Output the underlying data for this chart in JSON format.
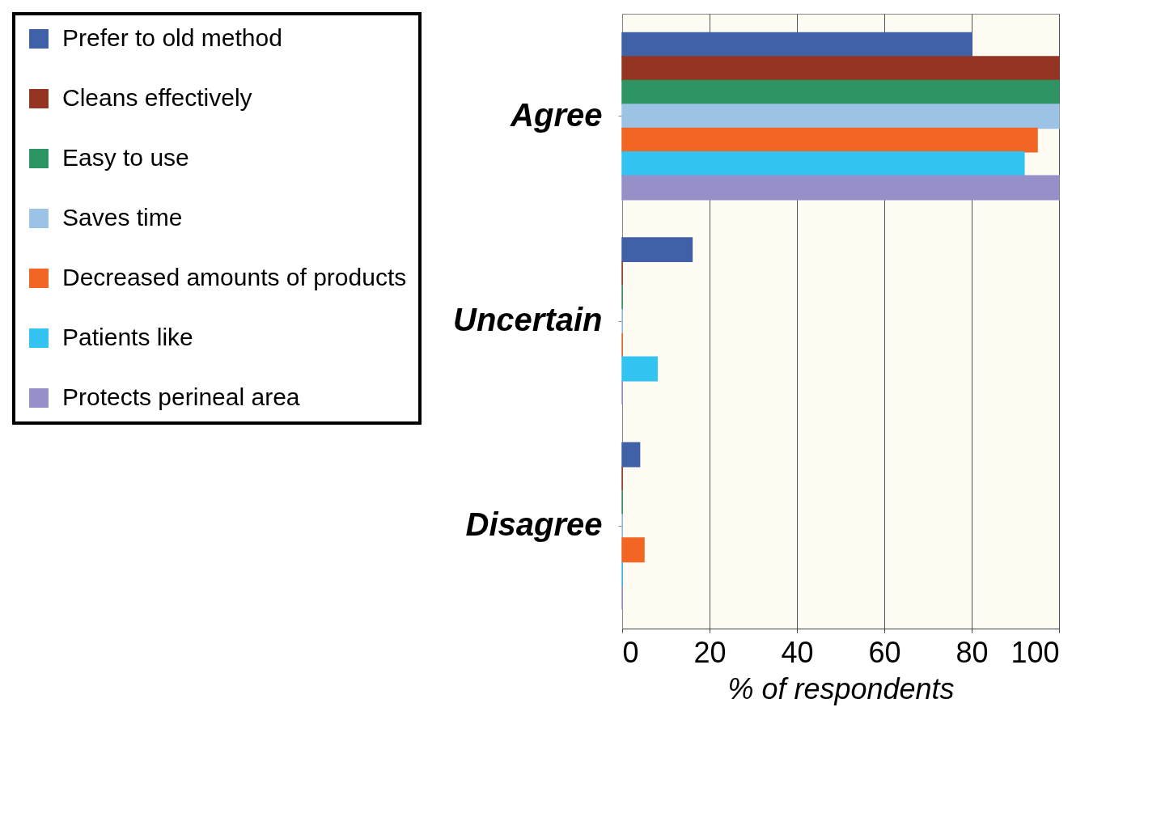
{
  "chart_data": {
    "type": "bar",
    "orientation": "horizontal",
    "categories": [
      "Agree",
      "Uncertain",
      "Disagree"
    ],
    "series": [
      {
        "name": "Prefer to old method",
        "color": "#4060a8",
        "values": [
          80,
          16,
          4
        ]
      },
      {
        "name": "Cleans effectively",
        "color": "#943422",
        "values": [
          100,
          0,
          0
        ]
      },
      {
        "name": "Easy to use",
        "color": "#2e9464",
        "values": [
          100,
          0,
          0
        ]
      },
      {
        "name": "Saves time",
        "color": "#9cc3e6",
        "values": [
          100,
          0,
          0
        ]
      },
      {
        "name": "Decreased amounts of products",
        "color": "#f26522",
        "values": [
          95,
          0,
          5
        ]
      },
      {
        "name": "Patients like",
        "color": "#33c3f0",
        "values": [
          92,
          8,
          0
        ]
      },
      {
        "name": "Protects perineal area",
        "color": "#9591c8",
        "values": [
          100,
          0,
          0
        ]
      }
    ],
    "xlim": [
      0,
      100
    ],
    "xticks": [
      0,
      20,
      40,
      60,
      80,
      100
    ],
    "xlabel": "% of respondents",
    "grid": "x",
    "legend": "left"
  }
}
